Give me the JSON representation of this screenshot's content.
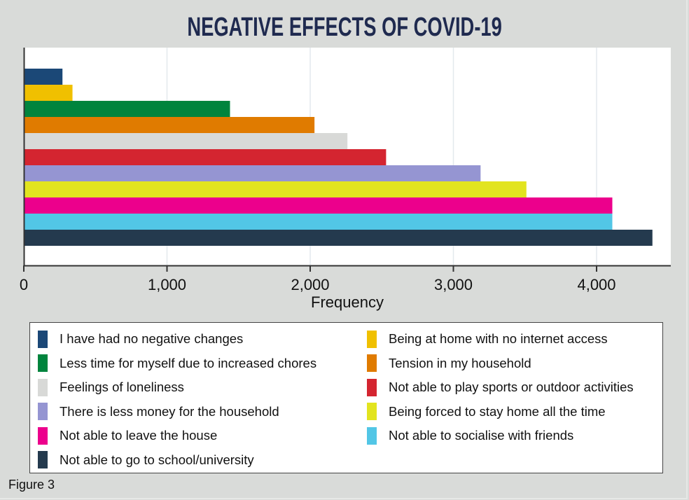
{
  "figure_label": "Figure 3",
  "chart_data": {
    "type": "bar",
    "orientation": "horizontal",
    "title": "NEGATIVE EFFECTS OF COVID-19",
    "xlabel": "Frequency",
    "ylabel": "",
    "xlim": [
      0,
      4500
    ],
    "xticks": [
      0,
      1000,
      2000,
      3000,
      4000
    ],
    "xtick_labels": [
      "0",
      "1,000",
      "2,000",
      "3,000",
      "4,000"
    ],
    "grid": true,
    "legend_position": "bottom",
    "categories": [
      "I have had no negative changes",
      "Being at home with no internet access",
      "Less time for myself due to increased chores",
      "Tension in my household",
      "Feelings of loneliness",
      "Not able to play sports or outdoor activities",
      "There is less money for the household",
      "Being forced to stay home all the time",
      "Not able to leave the house",
      "Not able to socialise with friends",
      "Not able to go to school/university"
    ],
    "values": [
      270,
      340,
      1440,
      2030,
      2260,
      2530,
      3190,
      3510,
      4110,
      4110,
      4390
    ],
    "colors": [
      "#1b4877",
      "#f0c000",
      "#00843d",
      "#e07b00",
      "#d8d9d7",
      "#d42530",
      "#9595d2",
      "#e2e41f",
      "#ec008c",
      "#52c6e6",
      "#243a4e"
    ]
  },
  "legend": {
    "left": [
      {
        "label": "I have had no negative changes",
        "color": "#1b4877"
      },
      {
        "label": "Less time for myself due to increased chores",
        "color": "#00843d"
      },
      {
        "label": "Feelings of loneliness",
        "color": "#d8d9d7"
      },
      {
        "label": "There is less money for the household",
        "color": "#9595d2"
      },
      {
        "label": "Not able to leave the house",
        "color": "#ec008c"
      },
      {
        "label": "Not able to go to school/university",
        "color": "#243a4e"
      }
    ],
    "right": [
      {
        "label": "Being at home with no internet access",
        "color": "#f0c000"
      },
      {
        "label": "Tension in my household",
        "color": "#e07b00"
      },
      {
        "label": "Not able to play sports or outdoor activities",
        "color": "#d42530"
      },
      {
        "label": "Being forced to stay home all the time",
        "color": "#e2e41f"
      },
      {
        "label": "Not able to socialise with friends",
        "color": "#52c6e6"
      }
    ]
  }
}
